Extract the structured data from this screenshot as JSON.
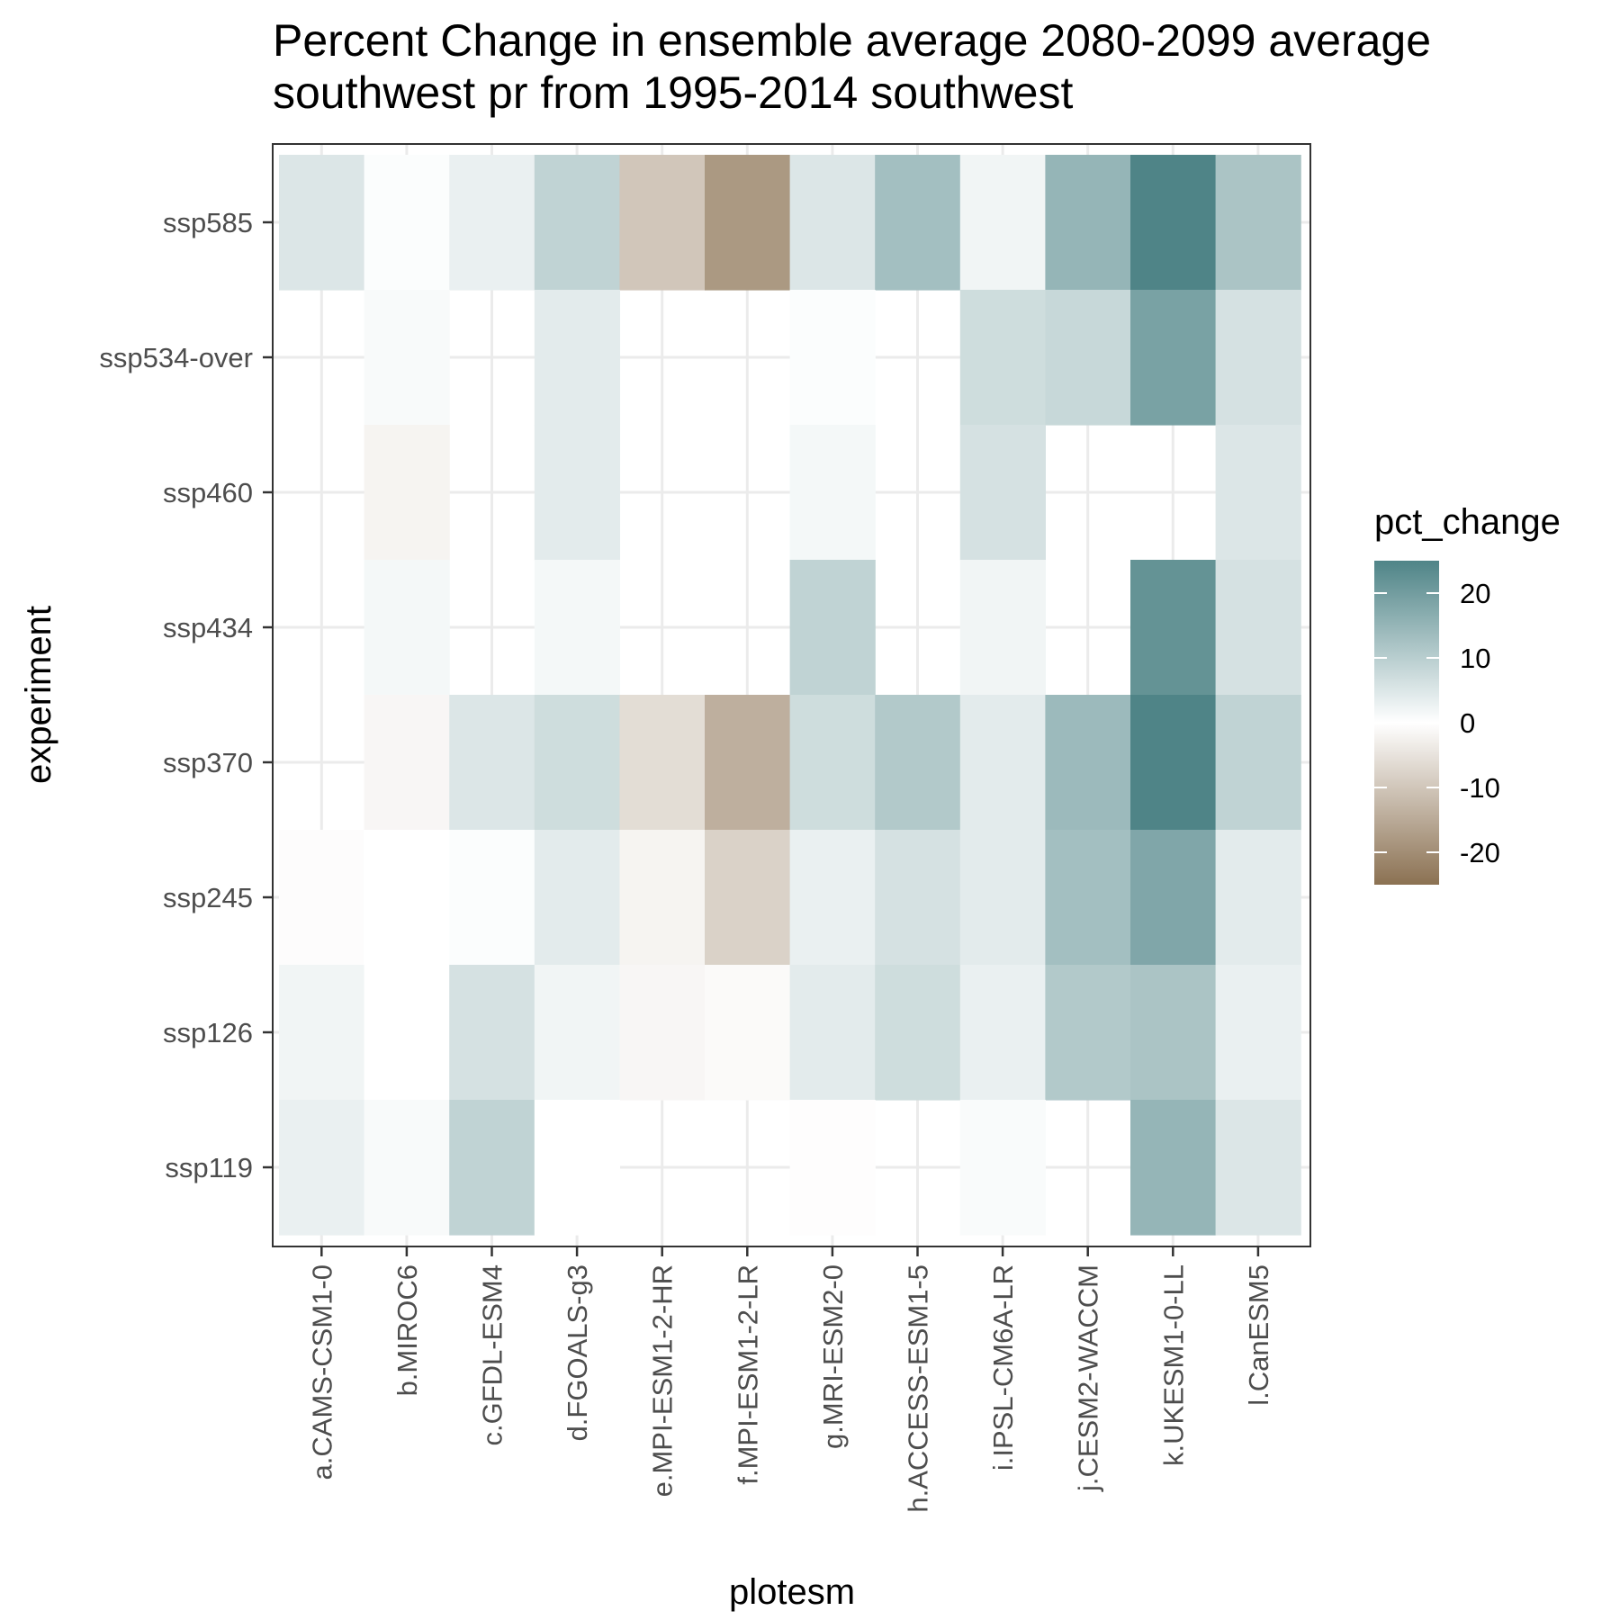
{
  "chart_data": {
    "type": "heatmap",
    "title": "Percent Change in ensemble average 2080-2099 average southwest pr from 1995-2014 southwest",
    "title_lines": [
      "Percent Change in ensemble average 2080-2099 average",
      "southwest pr from 1995-2014 southwest"
    ],
    "xlabel": "plotesm",
    "ylabel": "experiment",
    "x_categories": [
      "a.CAMS-CSM1-0",
      "b.MIROC6",
      "c.GFDL-ESM4",
      "d.FGOALS-g3",
      "e.MPI-ESM1-2-HR",
      "f.MPI-ESM1-2-LR",
      "g.MRI-ESM2-0",
      "h.ACCESS-ESM1-5",
      "i.IPSL-CM6A-LR",
      "j.CESM2-WACCM",
      "k.UKESM1-0-LL",
      "l.CanESM5"
    ],
    "y_categories": [
      "ssp585",
      "ssp534-over",
      "ssp460",
      "ssp434",
      "ssp370",
      "ssp245",
      "ssp126",
      "ssp119"
    ],
    "values": [
      [
        5,
        0.5,
        3,
        9,
        -10,
        -18,
        5,
        13,
        2,
        15,
        25,
        12
      ],
      [
        null,
        1,
        null,
        4,
        null,
        null,
        0.5,
        null,
        7,
        8,
        19,
        6
      ],
      [
        null,
        -2,
        null,
        4,
        null,
        null,
        1.5,
        null,
        6,
        null,
        null,
        5
      ],
      [
        null,
        1.5,
        null,
        1.5,
        null,
        null,
        9,
        null,
        2,
        null,
        22,
        6
      ],
      [
        null,
        -1.5,
        5,
        7,
        -6,
        -14,
        7,
        11,
        4,
        14,
        25,
        9
      ],
      [
        -0.5,
        0,
        0.5,
        4,
        -2,
        -8,
        3,
        6,
        4,
        13,
        18,
        4
      ],
      [
        2,
        0,
        6,
        2,
        -1.5,
        -0.8,
        4,
        7,
        3,
        11,
        12,
        3
      ],
      [
        3,
        1,
        9,
        0,
        null,
        null,
        -0.3,
        null,
        0.8,
        null,
        15,
        5
      ]
    ],
    "legend": {
      "title": "pct_change",
      "ticks": [
        20,
        10,
        0,
        -10,
        -20
      ],
      "range": [
        -25,
        25
      ],
      "placement": "right"
    },
    "colors": {
      "positive": "#4f8487",
      "zero": "#ffffff",
      "negative": "#8b7152"
    },
    "grid": true
  }
}
